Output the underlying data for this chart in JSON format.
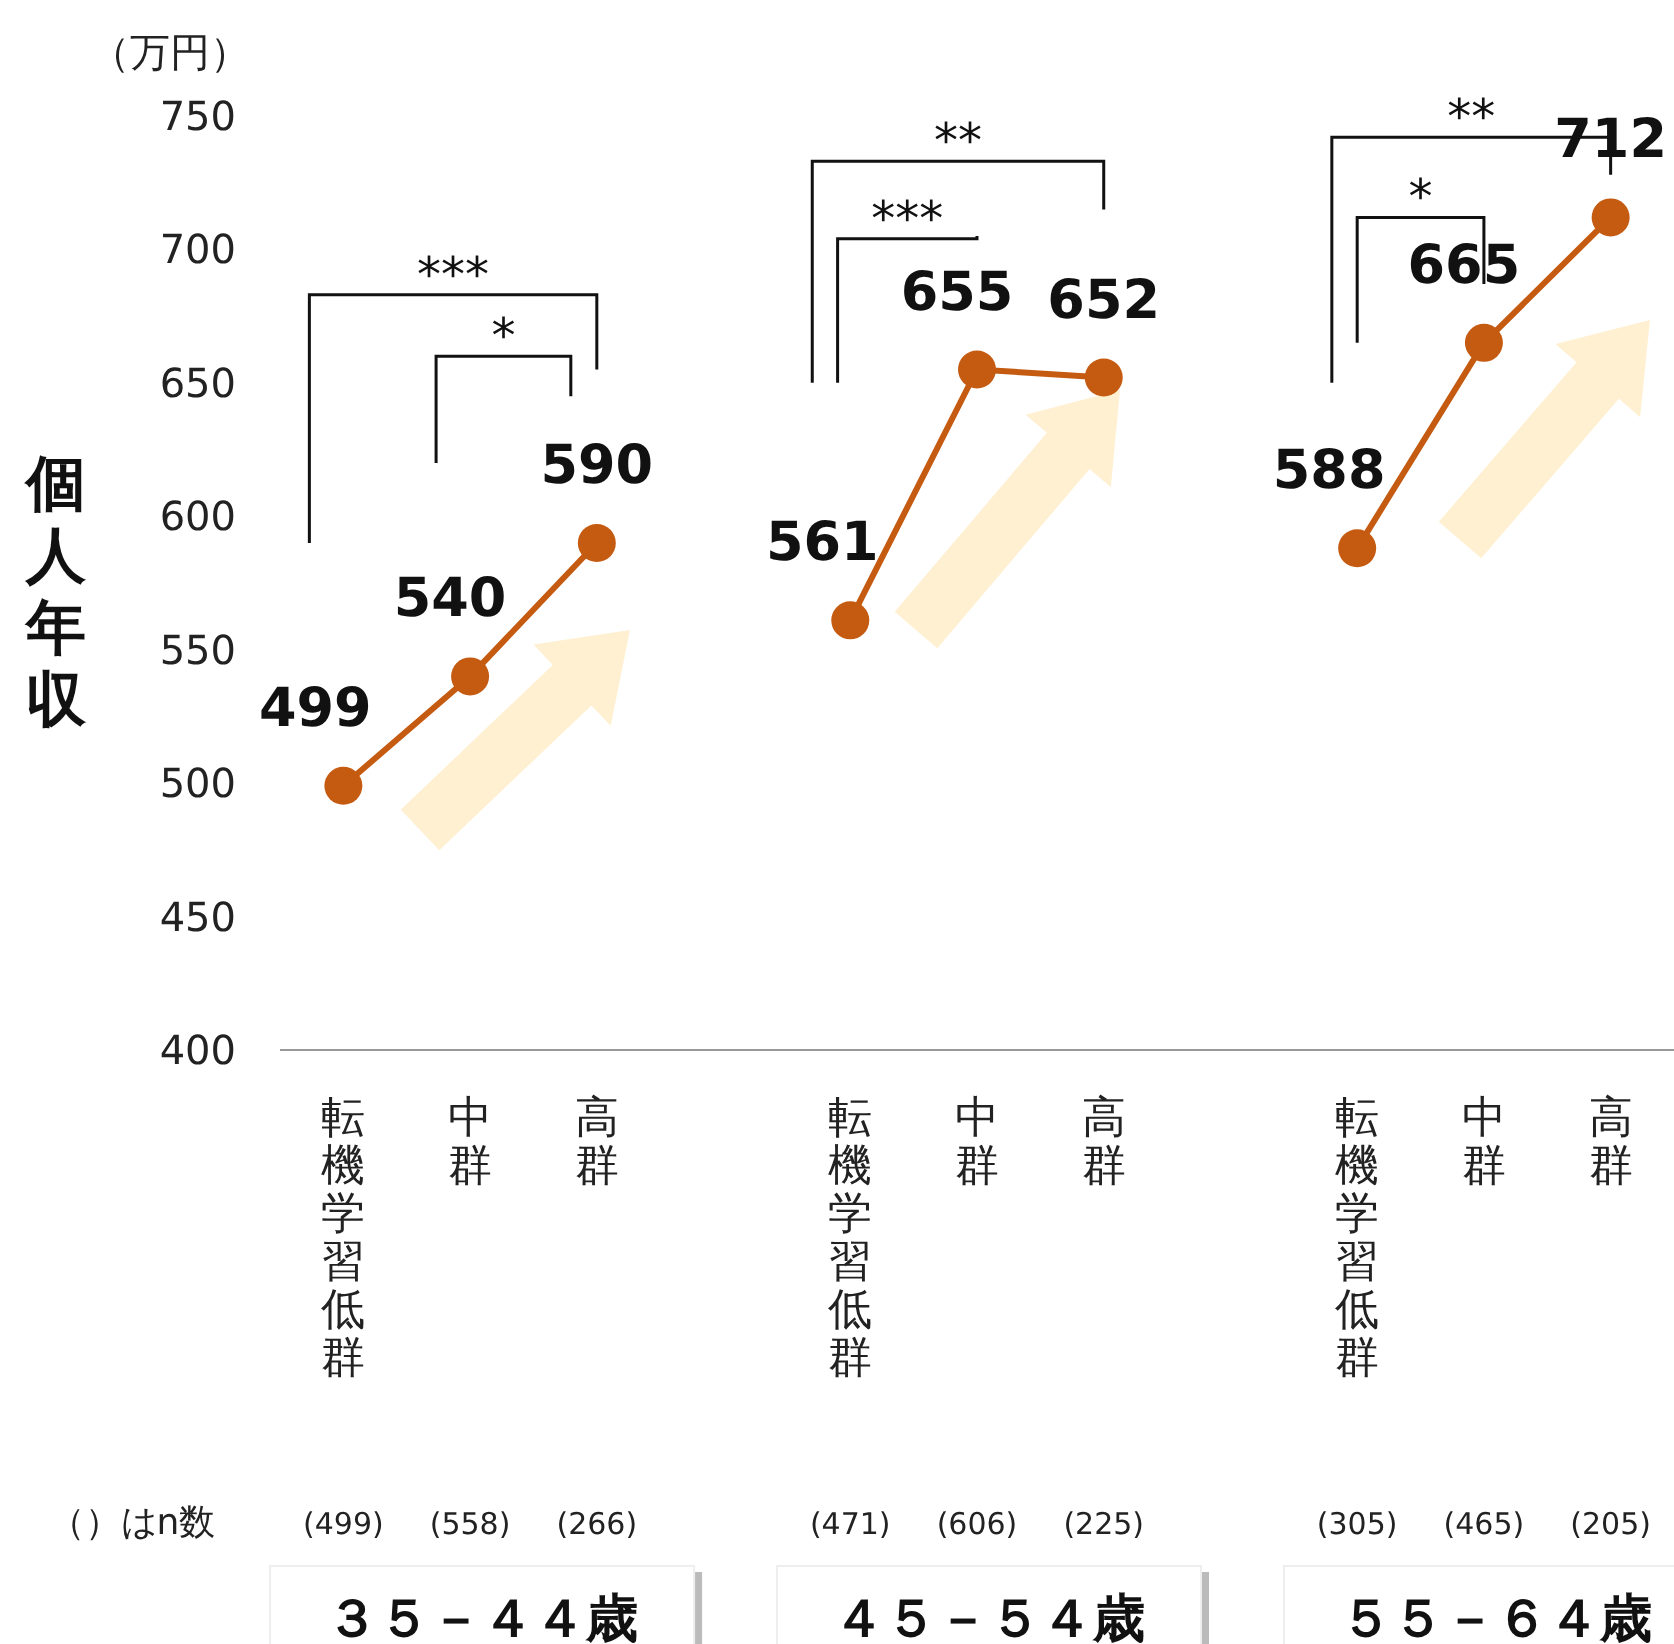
{
  "chart_data": {
    "type": "line",
    "ylabel": "個人年収",
    "subtitle": "（万円）",
    "categories": [
      "転機学習低群",
      "中群",
      "高群",
      null,
      "転機学習低群",
      "中群",
      "高群",
      null,
      "転機学習低群",
      "中群",
      "高群"
    ],
    "series": [
      {
        "color": "#c55a11",
        "values": [
          499,
          540,
          590,
          null,
          561,
          655,
          652,
          null,
          588,
          665,
          712
        ]
      }
    ],
    "ylim": [
      400,
      750
    ],
    "yticks": [
      400,
      450,
      500,
      550,
      600,
      650,
      700,
      750
    ],
    "data_labels": true,
    "marker": "circle",
    "annotations": [
      "***",
      "*",
      "**",
      "***",
      "**",
      "*",
      "（）はn数",
      "(499)",
      "(558)",
      "(266)",
      "(471)",
      "(606)",
      "(225)",
      "(305)",
      "(465)",
      "(205)",
      "３５－４４歳",
      "４５－５４歳",
      "５５－６４歳"
    ]
  }
}
